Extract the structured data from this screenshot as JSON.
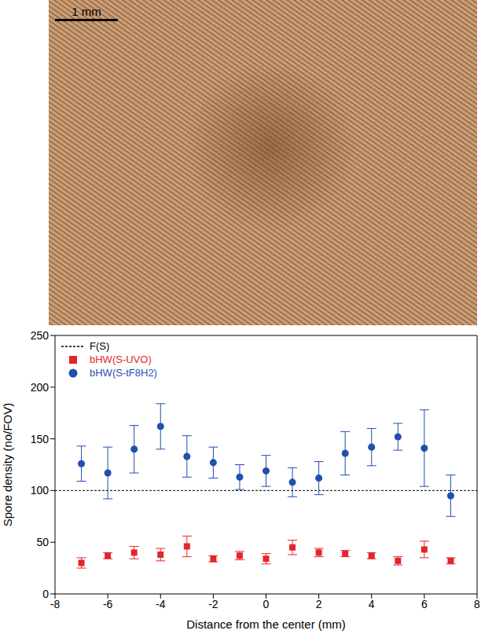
{
  "image": {
    "scale_bar_label": "1 mm"
  },
  "chart_data": {
    "type": "scatter",
    "xlabel": "Distance from the center   (mm)",
    "ylabel": "Spore density  (no/FOV)",
    "x": [
      -7,
      -6,
      -5,
      -4,
      -3,
      -2,
      -1,
      0,
      1,
      2,
      3,
      4,
      5,
      6,
      7
    ],
    "xlim": [
      -8,
      8
    ],
    "xticks": [
      -8,
      -6,
      -4,
      -2,
      0,
      2,
      4,
      6,
      8
    ],
    "ylim": [
      0,
      250
    ],
    "yticks": [
      0,
      50,
      100,
      150,
      200,
      250
    ],
    "legend": "upper left",
    "series": [
      {
        "name": "F(S)",
        "type": "line",
        "line_style": "dashed",
        "color": "#000000",
        "value": 100
      },
      {
        "name": "bHW(S-UVO)",
        "type": "scatter",
        "marker": "square",
        "color": "#e3262b",
        "values": [
          30,
          37,
          40,
          38,
          46,
          34,
          37,
          34,
          45,
          40,
          39,
          37,
          32,
          43,
          32
        ],
        "errors": [
          5,
          3,
          6,
          6,
          10,
          3,
          4,
          5,
          7,
          4,
          3,
          3,
          4,
          8,
          3
        ]
      },
      {
        "name": "bHW(S-tF8H2)",
        "type": "scatter",
        "marker": "circle",
        "color": "#1f4fb0",
        "values": [
          126,
          117,
          140,
          162,
          133,
          127,
          113,
          119,
          108,
          112,
          136,
          142,
          152,
          141,
          95
        ],
        "errors": [
          17,
          25,
          23,
          22,
          20,
          15,
          12,
          15,
          14,
          16,
          21,
          18,
          13,
          37,
          20
        ]
      }
    ]
  }
}
